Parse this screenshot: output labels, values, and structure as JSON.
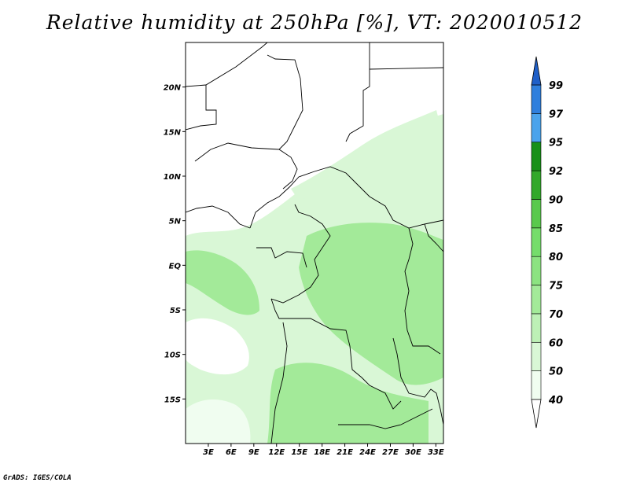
{
  "title": "Relative humidity at 250hPa [%], VT: 2020010512",
  "credit": "GrADS: IGES/COLA",
  "map": {
    "projection": "latlon",
    "lon_range": [
      0,
      34
    ],
    "lat_range": [
      -20,
      25
    ],
    "lon_ticks": [
      {
        "value": 3,
        "label": "3E"
      },
      {
        "value": 6,
        "label": "6E"
      },
      {
        "value": 9,
        "label": "9E"
      },
      {
        "value": 12,
        "label": "12E"
      },
      {
        "value": 15,
        "label": "15E"
      },
      {
        "value": 18,
        "label": "18E"
      },
      {
        "value": 21,
        "label": "21E"
      },
      {
        "value": 24,
        "label": "24E"
      },
      {
        "value": 27,
        "label": "27E"
      },
      {
        "value": 30,
        "label": "30E"
      },
      {
        "value": 33,
        "label": "33E"
      }
    ],
    "lat_ticks": [
      {
        "value": 20,
        "label": "20N"
      },
      {
        "value": 15,
        "label": "15N"
      },
      {
        "value": 10,
        "label": "10N"
      },
      {
        "value": 5,
        "label": "5N"
      },
      {
        "value": 0,
        "label": "EQ"
      },
      {
        "value": -5,
        "label": "5S"
      },
      {
        "value": -10,
        "label": "10S"
      },
      {
        "value": -15,
        "label": "15S"
      }
    ]
  },
  "colorbar": {
    "levels": [
      "40",
      "50",
      "60",
      "70",
      "75",
      "80",
      "85",
      "90",
      "92",
      "95",
      "97",
      "99"
    ],
    "colors": [
      "#f0fdf0",
      "#d9f7d6",
      "#bdf0b6",
      "#a3ea99",
      "#8ce381",
      "#75dd6b",
      "#59c94c",
      "#32a82a",
      "#179017",
      "#4ba3ec",
      "#2f7fdd",
      "#1f5fc8"
    ],
    "lower_arrow_color": "#ffffff",
    "upper_arrow_color": "#1f5fc8"
  },
  "colors": {
    "light_green": "#d9f7d6",
    "mid_green": "#a3ea99",
    "border": "#000000"
  }
}
